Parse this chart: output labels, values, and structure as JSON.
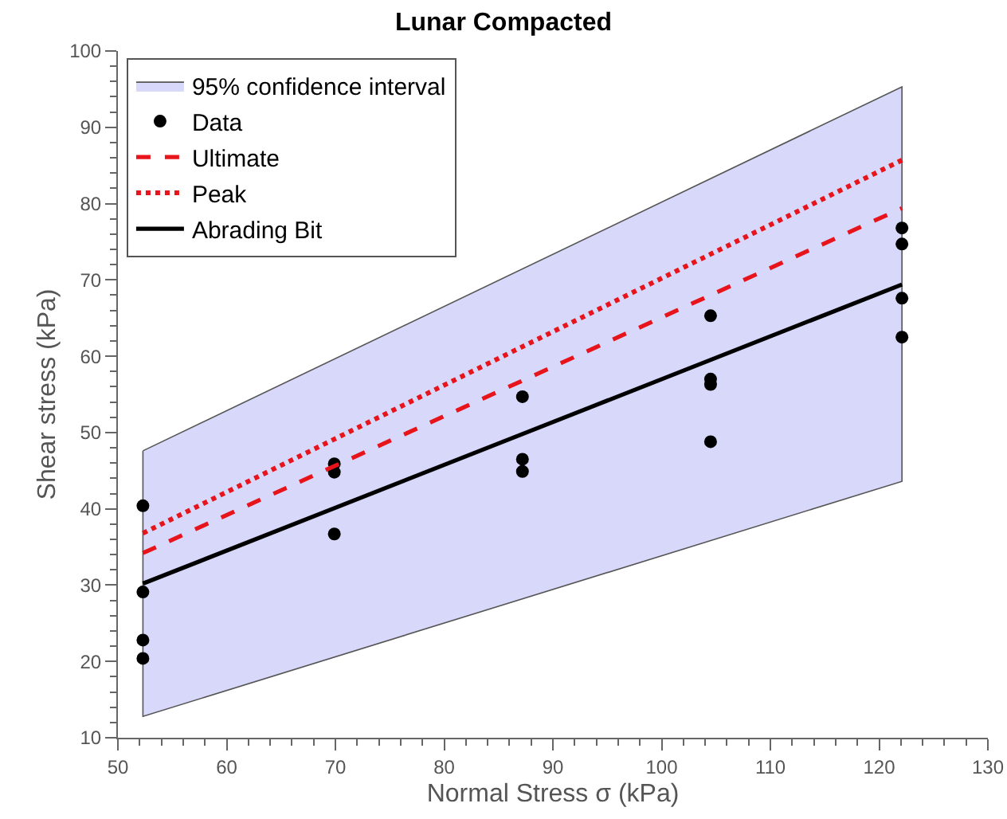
{
  "chart_data": {
    "type": "scatter",
    "title": "Lunar Compacted",
    "xlabel": "Normal Stress σ (kPa)",
    "ylabel": "Shear stress (kPa)",
    "xlim": [
      50,
      130
    ],
    "xticks": [
      50,
      60,
      70,
      80,
      90,
      100,
      110,
      120,
      130
    ],
    "ylim": [
      10,
      100
    ],
    "yticks": [
      10,
      20,
      30,
      40,
      50,
      60,
      70,
      80,
      90,
      100
    ],
    "grid": false,
    "legend": "top left",
    "series": [
      {
        "name": "95% confidence interval",
        "type": "area",
        "color": "#d8d8fa",
        "x": [
          52.3,
          122.1
        ],
        "values": [
          null,
          null
        ],
        "lower": [
          12.8,
          43.6
        ],
        "upper": [
          47.6,
          95.3
        ]
      },
      {
        "name": "Data",
        "color": "#000000",
        "marker": "circle",
        "x": [
          52.3,
          52.3,
          52.3,
          52.3,
          69.9,
          69.9,
          69.9,
          87.2,
          87.2,
          87.2,
          104.5,
          104.5,
          104.5,
          104.5,
          122.1,
          122.1,
          122.1,
          122.1
        ],
        "values": [
          40.4,
          29.1,
          22.8,
          20.4,
          45.9,
          44.8,
          36.7,
          54.7,
          46.5,
          44.9,
          65.3,
          57.0,
          56.3,
          48.8,
          76.8,
          74.7,
          67.6,
          62.5
        ]
      },
      {
        "name": "Ultimate",
        "type": "line",
        "color": "#e8141c",
        "line_style": "dashed",
        "x": [
          52.3,
          122.1
        ],
        "values": [
          34.2,
          79.4
        ]
      },
      {
        "name": "Peak",
        "type": "line",
        "color": "#e8141c",
        "line_style": "dotted",
        "x": [
          52.3,
          122.1
        ],
        "values": [
          36.8,
          85.7
        ]
      },
      {
        "name": "Abrading Bit",
        "type": "line",
        "color": "#000000",
        "line_style": "solid",
        "x": [
          52.3,
          122.1
        ],
        "values": [
          30.2,
          69.4
        ]
      }
    ]
  }
}
